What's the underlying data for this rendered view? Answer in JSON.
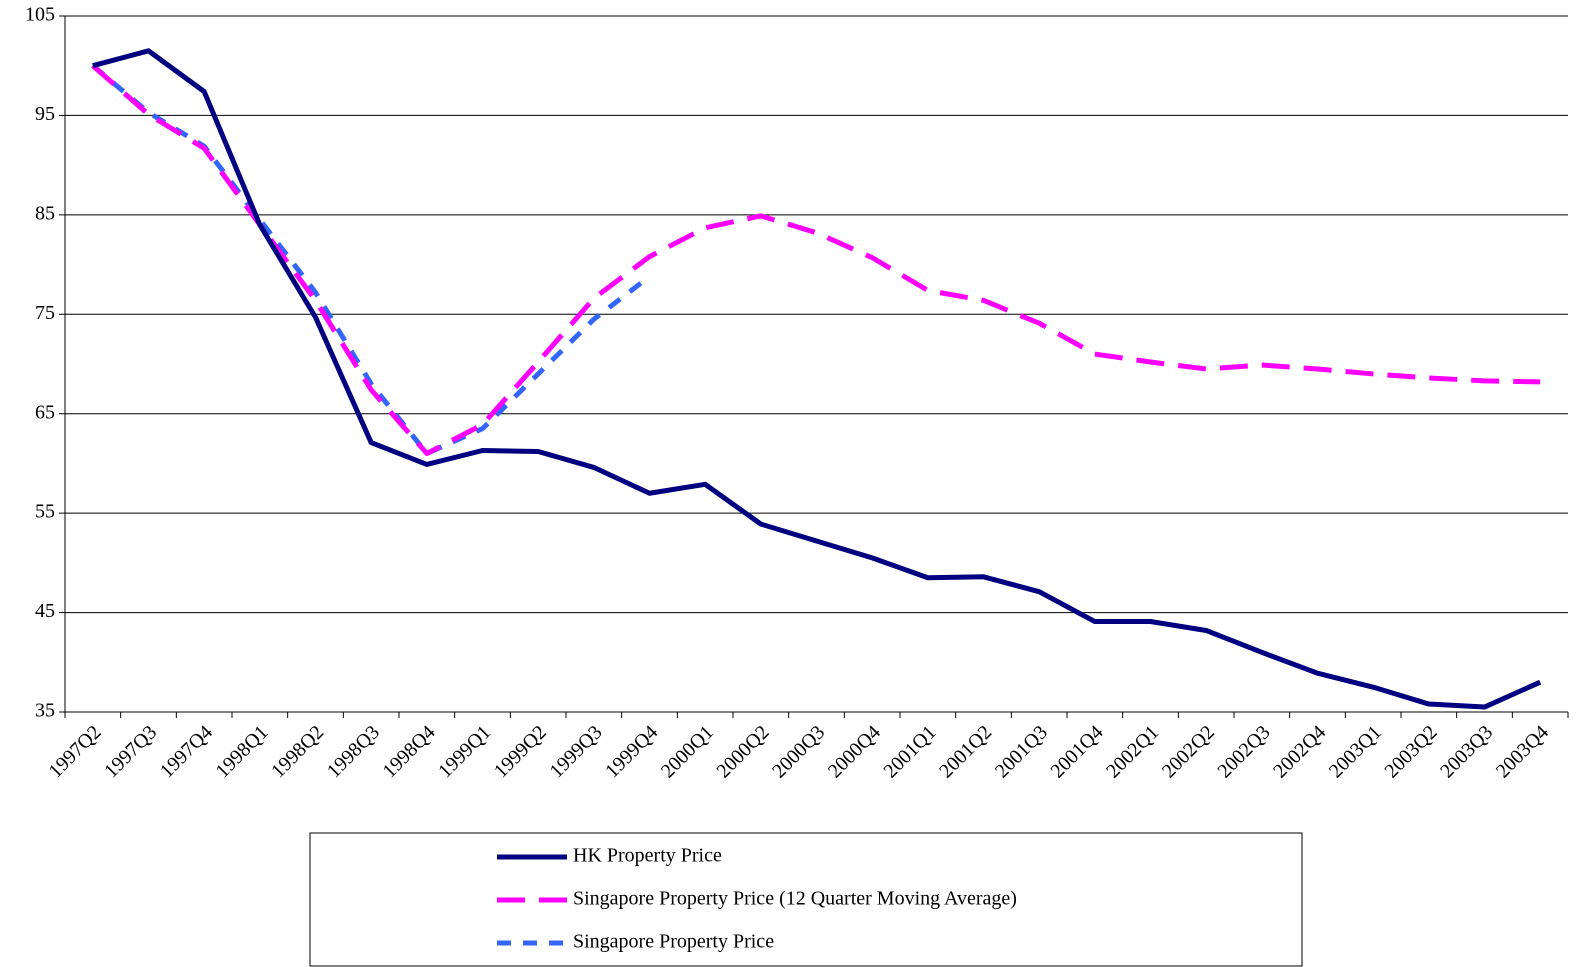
{
  "chart_data": {
    "type": "line",
    "categories": [
      "1997Q2",
      "1997Q3",
      "1997Q4",
      "1998Q1",
      "1998Q2",
      "1998Q3",
      "1998Q4",
      "1999Q1",
      "1999Q2",
      "1999Q3",
      "1999Q4",
      "2000Q1",
      "2000Q2",
      "2000Q3",
      "2000Q4",
      "2001Q1",
      "2001Q2",
      "2001Q3",
      "2001Q4",
      "2002Q1",
      "2002Q2",
      "2002Q3",
      "2002Q4",
      "2003Q1",
      "2003Q2",
      "2003Q3",
      "2003Q4"
    ],
    "series": [
      {
        "name": "HK Property Price",
        "color": "#000080",
        "values": [
          100,
          101.5,
          97.4,
          84,
          74.7,
          62.1,
          59.9,
          61.3,
          61.2,
          59.6,
          57.0,
          57.9,
          53.9,
          52.2,
          50.5,
          48.5,
          48.6,
          47.1,
          44.1,
          44.1,
          43.2,
          41.0,
          38.9,
          37.5,
          35.8,
          35.5,
          38.0
        ]
      },
      {
        "name": "Singapore Property Price (12 Quarter Moving Average)",
        "color": "#ff00ff",
        "values": [
          100,
          95.1,
          91.7,
          84.0,
          76.4,
          67.4,
          61.0,
          63.9,
          70.2,
          76.6,
          80.8,
          83.7,
          84.9,
          83.2,
          80.7,
          77.4,
          76.4,
          74.1,
          71.0,
          70.2,
          69.5,
          69.9,
          69.5,
          69.0,
          68.6,
          68.3,
          68.2
        ]
      },
      {
        "name": "Singapore Property Price",
        "color": "#3366ff",
        "values": [
          100,
          95.3,
          91.9,
          84.5,
          77.2,
          68.0,
          61.0,
          63.5,
          69.0,
          74.5,
          78.8,
          null,
          null,
          null,
          null,
          null,
          null,
          null,
          null,
          null,
          null,
          null,
          null,
          null,
          null,
          null,
          null
        ]
      }
    ],
    "ylim": [
      35,
      105
    ],
    "yticks": [
      35,
      45,
      55,
      65,
      75,
      85,
      95,
      105
    ],
    "grid": true,
    "legend": "bottom"
  }
}
